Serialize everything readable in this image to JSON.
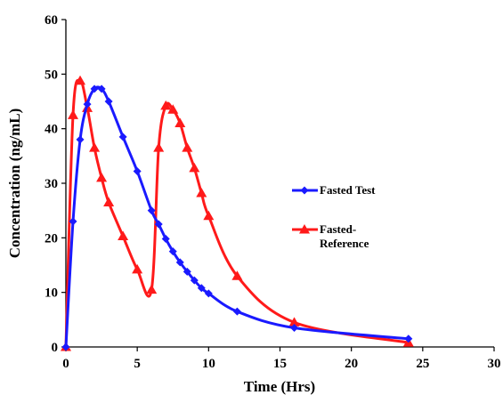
{
  "chart_data": {
    "type": "line",
    "xlabel": "Time (Hrs)",
    "ylabel": "Concentration (ng/mL)",
    "xlim": [
      0,
      30
    ],
    "ylim": [
      0,
      60
    ],
    "xticks": [
      0,
      5,
      10,
      15,
      20,
      25,
      30
    ],
    "yticks": [
      0,
      10,
      20,
      30,
      40,
      50,
      60
    ],
    "grid": false,
    "legend_position": "right",
    "series": [
      {
        "name": "Fasted Test",
        "color": "#1a1aff",
        "marker": "diamond",
        "x": [
          0,
          0.5,
          1,
          1.5,
          2,
          2.5,
          3,
          4,
          5,
          6,
          6.5,
          7,
          7.5,
          8,
          8.5,
          9,
          9.5,
          10,
          12,
          16,
          24
        ],
        "y": [
          0,
          23,
          38,
          44.5,
          47.3,
          47.3,
          45,
          38.5,
          32.2,
          25,
          22.5,
          19.8,
          17.5,
          15.5,
          13.8,
          12.2,
          10.8,
          9.8,
          6.5,
          3.5,
          1.5
        ]
      },
      {
        "name": "Fasted-Reference",
        "name_lines": [
          "Fasted-",
          "Reference"
        ],
        "color": "#ff1a1a",
        "marker": "triangle",
        "x": [
          0,
          0.5,
          1,
          1.5,
          2,
          2.5,
          3,
          4,
          5,
          6,
          6.5,
          7,
          7.5,
          8,
          8.5,
          9,
          9.5,
          10,
          12,
          16,
          24
        ],
        "y": [
          0,
          42.5,
          48.8,
          43.8,
          36.5,
          31,
          26.5,
          20.3,
          14.2,
          10.5,
          36.5,
          44.2,
          43.5,
          41,
          36.5,
          32.8,
          28.2,
          24,
          13,
          4.5,
          0.8
        ]
      }
    ]
  }
}
